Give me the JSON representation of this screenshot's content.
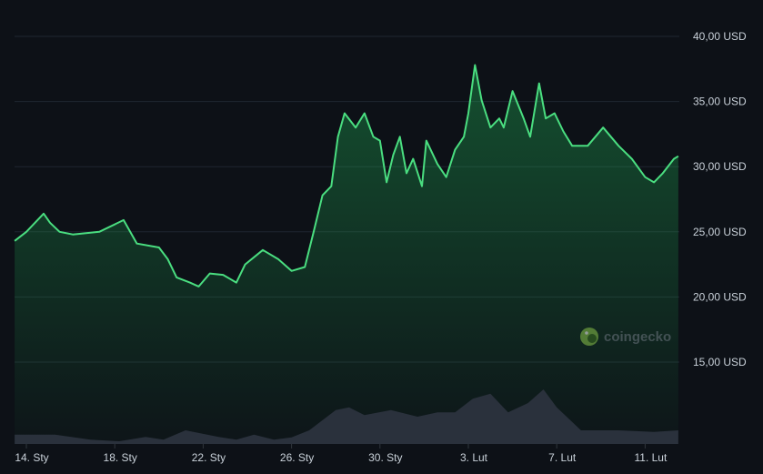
{
  "chart_data": {
    "type": "line",
    "title": "",
    "xlabel": "",
    "ylabel": "",
    "currency": "USD",
    "ylim": [
      15,
      40
    ],
    "yticks": [
      "15,00 USD",
      "20,00 USD",
      "25,00 USD",
      "30,00 USD",
      "35,00 USD",
      "40,00 USD"
    ],
    "ytick_values": [
      15,
      20,
      25,
      30,
      35,
      40
    ],
    "xticks": [
      "14. Sty",
      "18. Sty",
      "22. Sty",
      "26. Sty",
      "30. Sty",
      "3. Lut",
      "7. Lut",
      "11. Lut"
    ],
    "xtick_days": [
      0,
      4,
      8,
      12,
      16,
      20,
      24,
      28
    ],
    "x_unit": "days since 14. Sty",
    "grid": true,
    "line_color": "#4ade80",
    "watermark": "coingecko",
    "price": [
      [
        -0.53,
        24.3
      ],
      [
        0,
        25
      ],
      [
        0.78,
        26.4
      ],
      [
        1.07,
        25.7
      ],
      [
        1.5,
        25
      ],
      [
        2.1,
        24.8
      ],
      [
        3.3,
        25
      ],
      [
        4.4,
        25.9
      ],
      [
        5,
        24.1
      ],
      [
        6,
        23.8
      ],
      [
        6.4,
        22.9
      ],
      [
        6.8,
        21.5
      ],
      [
        7.4,
        21.1
      ],
      [
        7.8,
        20.8
      ],
      [
        8.3,
        21.8
      ],
      [
        8.9,
        21.7
      ],
      [
        9.5,
        21.1
      ],
      [
        9.9,
        22.5
      ],
      [
        10.7,
        23.6
      ],
      [
        11.4,
        22.9
      ],
      [
        12,
        22
      ],
      [
        12.6,
        22.3
      ],
      [
        13,
        25
      ],
      [
        13.4,
        27.8
      ],
      [
        13.8,
        28.5
      ],
      [
        14.1,
        32.3
      ],
      [
        14.4,
        34.1
      ],
      [
        14.9,
        33
      ],
      [
        15.3,
        34.1
      ],
      [
        15.7,
        32.3
      ],
      [
        16,
        32
      ],
      [
        16.3,
        28.8
      ],
      [
        16.6,
        30.9
      ],
      [
        16.9,
        32.3
      ],
      [
        17.2,
        29.5
      ],
      [
        17.5,
        30.6
      ],
      [
        17.9,
        28.5
      ],
      [
        18.1,
        32
      ],
      [
        18.6,
        30.2
      ],
      [
        19,
        29.2
      ],
      [
        19.4,
        31.3
      ],
      [
        19.8,
        32.3
      ],
      [
        20,
        34.1
      ],
      [
        20.3,
        37.8
      ],
      [
        20.6,
        35.1
      ],
      [
        21,
        33
      ],
      [
        21.4,
        33.7
      ],
      [
        21.6,
        33
      ],
      [
        22,
        35.8
      ],
      [
        22.5,
        33.7
      ],
      [
        22.8,
        32.3
      ],
      [
        23.2,
        36.4
      ],
      [
        23.5,
        33.7
      ],
      [
        23.9,
        34.1
      ],
      [
        24.3,
        32.7
      ],
      [
        24.7,
        31.6
      ],
      [
        25.4,
        31.6
      ],
      [
        26.1,
        33
      ],
      [
        26.8,
        31.6
      ],
      [
        27.4,
        30.6
      ],
      [
        28,
        29.2
      ],
      [
        28.4,
        28.8
      ],
      [
        28.8,
        29.5
      ],
      [
        29.3,
        30.6
      ],
      [
        29.5,
        30.8
      ]
    ],
    "volume_relative": [
      [
        -0.53,
        17
      ],
      [
        1.3,
        17
      ],
      [
        2.9,
        8
      ],
      [
        4.2,
        5
      ],
      [
        5.4,
        13
      ],
      [
        6.2,
        8
      ],
      [
        7.2,
        25
      ],
      [
        8.7,
        13
      ],
      [
        9.5,
        8
      ],
      [
        10.3,
        17
      ],
      [
        11.2,
        8
      ],
      [
        12,
        12
      ],
      [
        12.8,
        25
      ],
      [
        14.0,
        62
      ],
      [
        14.6,
        67
      ],
      [
        15.3,
        53
      ],
      [
        16.5,
        62
      ],
      [
        17.7,
        50
      ],
      [
        18.6,
        58
      ],
      [
        19.4,
        58
      ],
      [
        20.2,
        83
      ],
      [
        21,
        92
      ],
      [
        21.8,
        58
      ],
      [
        22.7,
        75
      ],
      [
        23.4,
        100
      ],
      [
        24,
        67
      ],
      [
        25.1,
        25
      ],
      [
        26.8,
        25
      ],
      [
        28.4,
        22
      ],
      [
        29.5,
        25
      ]
    ]
  }
}
